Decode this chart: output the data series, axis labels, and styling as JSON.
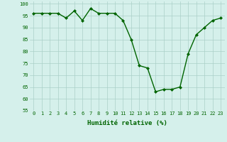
{
  "x": [
    0,
    1,
    2,
    3,
    4,
    5,
    6,
    7,
    8,
    9,
    10,
    11,
    12,
    13,
    14,
    15,
    16,
    17,
    18,
    19,
    20,
    21,
    22,
    23
  ],
  "y": [
    96,
    96,
    96,
    96,
    94,
    97,
    93,
    98,
    96,
    96,
    96,
    93,
    85,
    74,
    73,
    63,
    64,
    64,
    65,
    79,
    87,
    90,
    93,
    94
  ],
  "line_color": "#006400",
  "marker": "D",
  "marker_size": 2.0,
  "bg_color": "#d5f0eb",
  "grid_color": "#aacfc8",
  "xlabel": "Humidité relative (%)",
  "xlabel_color": "#006400",
  "ylim": [
    55,
    101
  ],
  "yticks": [
    55,
    60,
    65,
    70,
    75,
    80,
    85,
    90,
    95,
    100
  ],
  "xticks": [
    0,
    1,
    2,
    3,
    4,
    5,
    6,
    7,
    8,
    9,
    10,
    11,
    12,
    13,
    14,
    15,
    16,
    17,
    18,
    19,
    20,
    21,
    22,
    23
  ],
  "tick_color": "#006400",
  "tick_fontsize": 5.0,
  "xlabel_fontsize": 6.5,
  "line_width": 1.0
}
